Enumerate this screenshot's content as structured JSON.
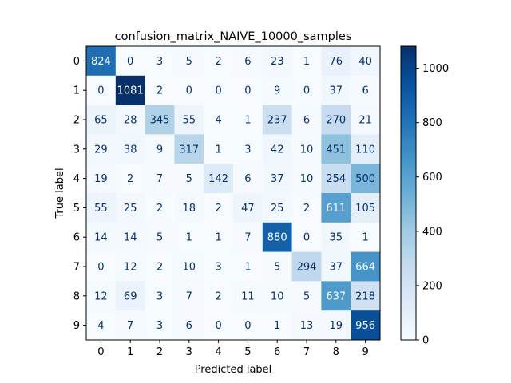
{
  "chart_data": {
    "type": "heatmap",
    "title": "confusion_matrix_NAIVE_10000_samples",
    "xlabel": "Predicted label",
    "ylabel": "True label",
    "x_categories": [
      "0",
      "1",
      "2",
      "3",
      "4",
      "5",
      "6",
      "7",
      "8",
      "9"
    ],
    "y_categories": [
      "0",
      "1",
      "2",
      "3",
      "4",
      "5",
      "6",
      "7",
      "8",
      "9"
    ],
    "values": [
      [
        824,
        0,
        3,
        5,
        2,
        6,
        23,
        1,
        76,
        40
      ],
      [
        0,
        1081,
        2,
        0,
        0,
        0,
        9,
        0,
        37,
        6
      ],
      [
        65,
        28,
        345,
        55,
        4,
        1,
        237,
        6,
        270,
        21
      ],
      [
        29,
        38,
        9,
        317,
        1,
        3,
        42,
        10,
        451,
        110
      ],
      [
        19,
        2,
        7,
        5,
        142,
        6,
        37,
        10,
        254,
        500
      ],
      [
        55,
        25,
        2,
        18,
        2,
        47,
        25,
        2,
        611,
        105
      ],
      [
        14,
        14,
        5,
        1,
        1,
        7,
        880,
        0,
        35,
        1
      ],
      [
        0,
        12,
        2,
        10,
        3,
        1,
        5,
        294,
        37,
        664
      ],
      [
        12,
        69,
        3,
        7,
        2,
        11,
        10,
        5,
        637,
        218
      ],
      [
        4,
        7,
        3,
        6,
        0,
        0,
        1,
        13,
        19,
        956
      ]
    ],
    "colormap": "Blues",
    "color_range": [
      0,
      1081
    ],
    "colorbar_ticks": [
      0,
      200,
      400,
      600,
      800,
      1000
    ],
    "legend": "colorbar-right"
  }
}
